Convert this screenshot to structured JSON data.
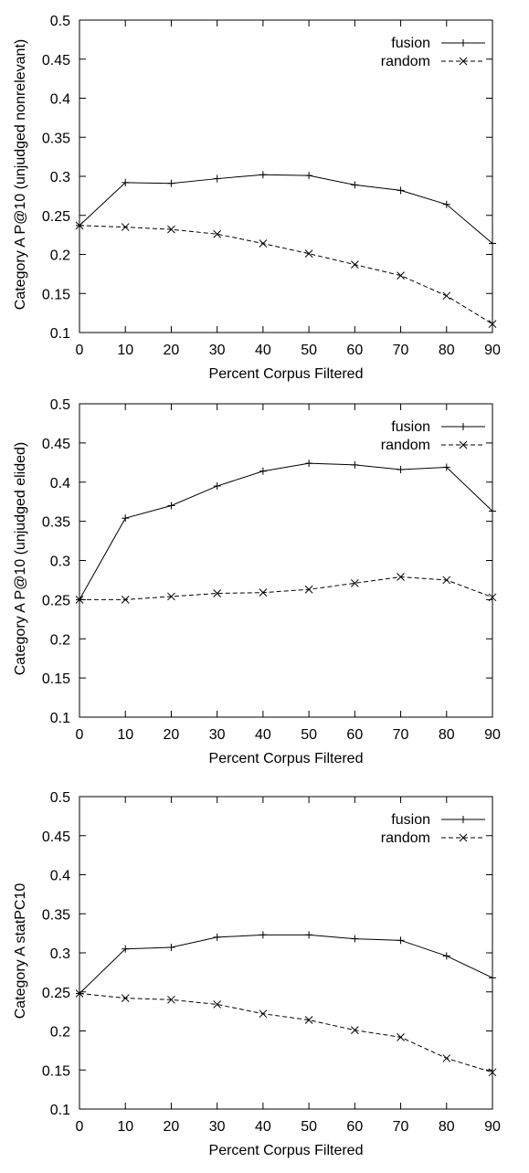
{
  "chart_data": [
    {
      "type": "line",
      "xlabel": "Percent Corpus Filtered",
      "ylabel": "Category A P@10 (unjudged nonrelevant)",
      "x": [
        0,
        10,
        20,
        30,
        40,
        50,
        60,
        70,
        80,
        90
      ],
      "xticks": [
        "0",
        "10",
        "20",
        "30",
        "40",
        "50",
        "60",
        "70",
        "80",
        "90"
      ],
      "yticks": [
        "0.1",
        "0.15",
        "0.2",
        "0.25",
        "0.3",
        "0.35",
        "0.4",
        "0.45",
        "0.5"
      ],
      "xlim": [
        0,
        90
      ],
      "ylim": [
        0.1,
        0.5
      ],
      "grid": false,
      "legend_position": "top-right",
      "series": [
        {
          "name": "fusion",
          "marker": "+",
          "line": "solid",
          "values": [
            0.237,
            0.292,
            0.291,
            0.297,
            0.302,
            0.301,
            0.289,
            0.282,
            0.264,
            0.214
          ]
        },
        {
          "name": "random",
          "marker": "x",
          "line": "dashed",
          "values": [
            0.237,
            0.235,
            0.232,
            0.226,
            0.214,
            0.201,
            0.187,
            0.173,
            0.147,
            0.111
          ]
        }
      ]
    },
    {
      "type": "line",
      "xlabel": "Percent Corpus Filtered",
      "ylabel": "Category A P@10 (unjudged elided)",
      "x": [
        0,
        10,
        20,
        30,
        40,
        50,
        60,
        70,
        80,
        90
      ],
      "xticks": [
        "0",
        "10",
        "20",
        "30",
        "40",
        "50",
        "60",
        "70",
        "80",
        "90"
      ],
      "yticks": [
        "0.1",
        "0.15",
        "0.2",
        "0.25",
        "0.3",
        "0.35",
        "0.4",
        "0.45",
        "0.5"
      ],
      "xlim": [
        0,
        90
      ],
      "ylim": [
        0.1,
        0.5
      ],
      "grid": false,
      "legend_position": "top-right",
      "series": [
        {
          "name": "fusion",
          "marker": "+",
          "line": "solid",
          "values": [
            0.25,
            0.354,
            0.37,
            0.395,
            0.414,
            0.424,
            0.422,
            0.416,
            0.419,
            0.363
          ]
        },
        {
          "name": "random",
          "marker": "x",
          "line": "dashed",
          "values": [
            0.25,
            0.25,
            0.254,
            0.258,
            0.259,
            0.263,
            0.271,
            0.279,
            0.275,
            0.253
          ]
        }
      ]
    },
    {
      "type": "line",
      "xlabel": "Percent Corpus Filtered",
      "ylabel": "Category A statPC10",
      "x": [
        0,
        10,
        20,
        30,
        40,
        50,
        60,
        70,
        80,
        90
      ],
      "xticks": [
        "0",
        "10",
        "20",
        "30",
        "40",
        "50",
        "60",
        "70",
        "80",
        "90"
      ],
      "yticks": [
        "0.1",
        "0.15",
        "0.2",
        "0.25",
        "0.3",
        "0.35",
        "0.4",
        "0.45",
        "0.5"
      ],
      "xlim": [
        0,
        90
      ],
      "ylim": [
        0.1,
        0.5
      ],
      "grid": false,
      "legend_position": "top-right",
      "series": [
        {
          "name": "fusion",
          "marker": "+",
          "line": "solid",
          "values": [
            0.248,
            0.305,
            0.307,
            0.32,
            0.323,
            0.323,
            0.318,
            0.316,
            0.296,
            0.268
          ]
        },
        {
          "name": "random",
          "marker": "x",
          "line": "dashed",
          "values": [
            0.248,
            0.242,
            0.24,
            0.234,
            0.222,
            0.214,
            0.201,
            0.192,
            0.165,
            0.147
          ]
        }
      ]
    }
  ]
}
